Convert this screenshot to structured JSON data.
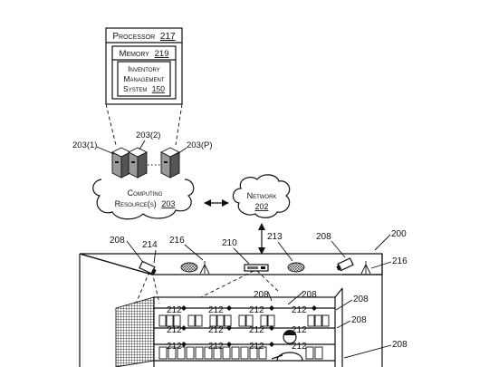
{
  "processor": {
    "label": "Processor",
    "ref": "217"
  },
  "memory": {
    "label": "Memory",
    "ref": "219"
  },
  "inventory_system": {
    "line1": "Inventory",
    "line2": "Management",
    "line3": "System",
    "ref": "150"
  },
  "servers": {
    "label_1": "203(1)",
    "label_2": "203(2)",
    "label_p": "203(P)"
  },
  "computing_resources": {
    "line1": "Computing",
    "line2": "Resource(s)",
    "ref": "203"
  },
  "network": {
    "label": "Network",
    "ref": "202"
  },
  "refs": {
    "r208_a": "208",
    "r214": "214",
    "r216_a": "216",
    "r210": "210",
    "r213": "213",
    "r208_b": "208",
    "r200": "200",
    "r216_b": "216",
    "r208_c": "208",
    "r208_d": "208",
    "r208_e": "208",
    "r208_f": "208",
    "r208_g": "208",
    "r212_1": "212",
    "r212_2": "212",
    "r212_3": "212",
    "r212_4": "212",
    "r212_5": "212",
    "r212_6": "212",
    "r212_7": "212",
    "r212_8": "212",
    "r212_9": "212",
    "r212_10": "212",
    "r212_11": "212",
    "r212_12": "212"
  }
}
